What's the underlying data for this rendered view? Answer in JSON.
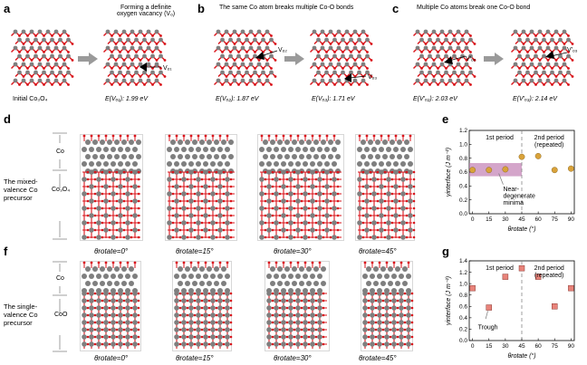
{
  "panels": {
    "a": {
      "label": "a",
      "caption_left": "Initial Co₃O₄",
      "title_right": "Forming a definite",
      "title_right2": "oxygen vacancy (Vₒ)",
      "arrow_label": "Vₒ₁",
      "energy_right": "E(Vₒ₁): 1.99 eV"
    },
    "b": {
      "label": "b",
      "title": "The same Co atom breaks multiple Co-O bonds",
      "arrow_left": "Vₒ₂",
      "arrow_right": "Vₒ₃",
      "energy_left": "E(Vₒ₂): 1.87 eV",
      "energy_right": "E(Vₒ₃): 1.71 eV"
    },
    "c": {
      "label": "c",
      "title": "Multiple Co atoms break one Co-O bond",
      "arrow_left": "V'ₒ₂",
      "arrow_right": "V'ₒ₃",
      "energy_left": "E(V'ₒ₂): 2.03 eV",
      "energy_right": "E(V'ₒ₃): 2.14 eV"
    },
    "d": {
      "label": "d",
      "layer_top": "Co",
      "layer_bottom": "Co₃O₄",
      "side_label": [
        "The mixed-",
        "valence Co",
        "precursor"
      ],
      "angles": [
        "θrotate=0°",
        "θrotate=15°",
        "θrotate=30°",
        "θrotate=45°"
      ]
    },
    "f": {
      "label": "f",
      "layer_top": "Co",
      "layer_bottom": "CoO",
      "side_label": [
        "The single-",
        "valence Co",
        "precursor"
      ],
      "angles": [
        "θrotate=0°",
        "θrotate=15°",
        "θrotate=30°",
        "θrotate=45°"
      ]
    },
    "e": {
      "label": "e",
      "annotation_period1": "1st period",
      "annotation_period2": "2nd period",
      "annotation_period2b": "(repeated)",
      "annotation_minima": [
        "Near-",
        "degenerate",
        "minima"
      ]
    },
    "g": {
      "label": "g",
      "annotation_period1": "1st period",
      "annotation_period2": "2nd period",
      "annotation_period2b": "(repeated)",
      "annotation_trough": "Trough"
    }
  },
  "colors": {
    "oxygen": "#d9141b",
    "cobalt": "#7f7f7f",
    "arrow_gray": "#9a9a9a",
    "marker_e": "#d9a23a",
    "marker_g": "#e8837a",
    "highlight": "#c27fb4"
  },
  "chart_data": [
    {
      "panel": "e",
      "type": "scatter",
      "xlabel": "θrotate (°)",
      "ylabel": "γinterface (J m⁻²)",
      "x": [
        0,
        15,
        30,
        45,
        60,
        75,
        90
      ],
      "values": [
        0.63,
        0.63,
        0.64,
        0.82,
        0.83,
        0.63,
        0.65
      ],
      "xticks": [
        "0",
        "15",
        "30",
        "45",
        "60",
        "75",
        "90"
      ],
      "yticks": [
        "0.0",
        "0.2",
        "0.4",
        "0.6",
        "0.8",
        "1.0",
        "1.2"
      ],
      "xlim": [
        -3,
        93
      ],
      "ylim": [
        0.0,
        1.2
      ],
      "period_divider": 45,
      "highlight_band": [
        0.54,
        0.73
      ]
    },
    {
      "panel": "g",
      "type": "scatter",
      "xlabel": "θrotate (°)",
      "ylabel": "γinterface (J m⁻²)",
      "x": [
        0,
        15,
        30,
        45,
        60,
        75,
        90
      ],
      "values": [
        0.92,
        0.58,
        1.12,
        1.27,
        1.12,
        0.6,
        0.92
      ],
      "xticks": [
        "0",
        "15",
        "30",
        "45",
        "60",
        "75",
        "90"
      ],
      "yticks": [
        "0.0",
        "0.2",
        "0.4",
        "0.6",
        "0.8",
        "1.0",
        "1.2",
        "1.4"
      ],
      "xlim": [
        -3,
        93
      ],
      "ylim": [
        0.0,
        1.4
      ],
      "period_divider": 45
    }
  ]
}
